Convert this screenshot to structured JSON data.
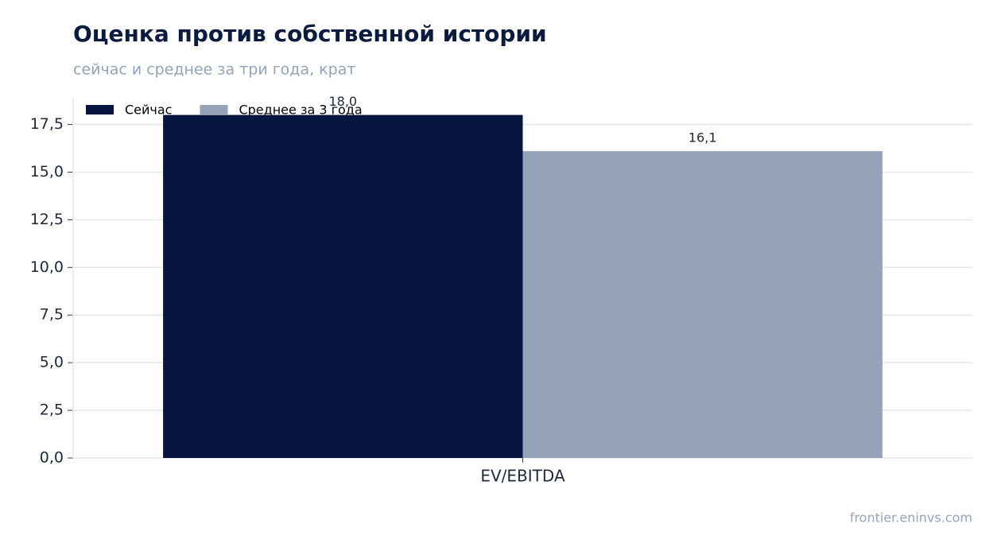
{
  "chart_data": {
    "type": "bar",
    "title": "Оценка против собственной истории",
    "subtitle": "сейчас и среднее за три года, крат",
    "source": "frontier.eninvs.com",
    "categories": [
      "EV/EBITDA"
    ],
    "series": [
      {
        "name": "Сейчас",
        "color": "#06163f",
        "values": [
          18.0
        ],
        "value_labels": [
          "18,0"
        ]
      },
      {
        "name": "Среднее за 3 года",
        "color": "#94a3b8",
        "values": [
          16.1
        ],
        "value_labels": [
          "16,1"
        ]
      }
    ],
    "ylim": [
      0,
      18.9
    ],
    "yticks": [
      {
        "value": 0,
        "label": "0,0"
      },
      {
        "value": 2.5,
        "label": "2,5"
      },
      {
        "value": 5,
        "label": "5,0"
      },
      {
        "value": 7.5,
        "label": "7,5"
      },
      {
        "value": 10,
        "label": "10,0"
      },
      {
        "value": 12.5,
        "label": "12,5"
      },
      {
        "value": 15,
        "label": "15,0"
      },
      {
        "value": 17.5,
        "label": "17,5"
      }
    ],
    "grid": true,
    "legend": "upper-left"
  }
}
